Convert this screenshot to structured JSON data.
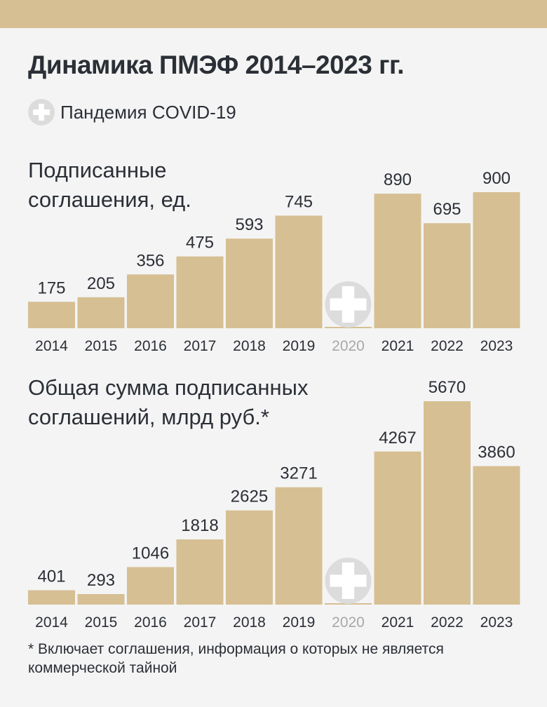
{
  "title": "Динамика ПМЭФ 2014–2023 гг.",
  "legend": {
    "icon": "medical-cross-icon",
    "label": "Пандемия COVID-19"
  },
  "colors": {
    "bar": "#d6bf93",
    "text": "#2b2f36",
    "muted": "#a8a8a8",
    "icon_bg": "#dcdcdc",
    "topbar": "#d6bf93"
  },
  "chart_data": [
    {
      "type": "bar",
      "title_lines": [
        "Подписанные",
        "соглашения, ед."
      ],
      "categories": [
        "2014",
        "2015",
        "2016",
        "2017",
        "2018",
        "2019",
        "2020",
        "2021",
        "2022",
        "2023"
      ],
      "values": [
        175,
        205,
        356,
        475,
        593,
        745,
        null,
        890,
        695,
        900
      ],
      "value_labels": [
        "175",
        "205",
        "356",
        "475",
        "593",
        "745",
        "",
        "890",
        "695",
        "900"
      ],
      "covid_category": "2020",
      "ylim": [
        0,
        900
      ],
      "grid": false
    },
    {
      "type": "bar",
      "title_lines": [
        "Общая сумма подписанных",
        "соглашений, млрд руб.*"
      ],
      "categories": [
        "2014",
        "2015",
        "2016",
        "2017",
        "2018",
        "2019",
        "2020",
        "2021",
        "2022",
        "2023"
      ],
      "values": [
        401,
        293,
        1046,
        1818,
        2625,
        3271,
        null,
        4267,
        5670,
        3860
      ],
      "value_labels": [
        "401",
        "293",
        "1046",
        "1818",
        "2625",
        "3271",
        "",
        "4267",
        "5670",
        "3860"
      ],
      "covid_category": "2020",
      "ylim": [
        0,
        5670
      ],
      "grid": false
    }
  ],
  "footnote": "* Включает соглашения, информация о которых не является коммерческой тайной"
}
